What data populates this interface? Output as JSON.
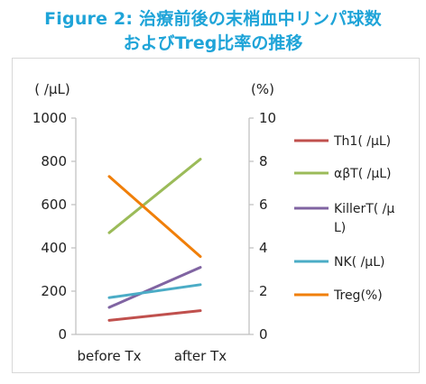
{
  "title": {
    "line1": "Figure 2: 治療前後の末梢血中リンパ球数",
    "line2": "およびTreg比率の推移",
    "color": "#1fa4d8"
  },
  "chart_data": {
    "type": "line",
    "categories": [
      "before Tx",
      "after Tx"
    ],
    "left_axis": {
      "unit": "( /μL)",
      "ylim": [
        0,
        1000
      ],
      "ticks": [
        "0",
        "200",
        "400",
        "600",
        "800",
        "1000"
      ]
    },
    "right_axis": {
      "unit": "(%)",
      "ylim": [
        0,
        10
      ],
      "ticks": [
        "0",
        "2",
        "4",
        "6",
        "8",
        "10"
      ]
    },
    "grid": false,
    "legend_position": "right",
    "series": [
      {
        "name": "Th1( /μL)",
        "axis": "left",
        "values": [
          65,
          110
        ],
        "color": "#c0504d"
      },
      {
        "name": "αβT( /μL)",
        "axis": "left",
        "values": [
          470,
          810
        ],
        "color": "#9bbb59"
      },
      {
        "name": "KillerT( /μL)",
        "axis": "left",
        "values": [
          125,
          310
        ],
        "color": "#8064a2"
      },
      {
        "name": "NK( /μL)",
        "axis": "left",
        "values": [
          170,
          230
        ],
        "color": "#4bacc6"
      },
      {
        "name": "Treg(%)",
        "axis": "right",
        "values": [
          7.3,
          3.6
        ],
        "color": "#f07f09"
      }
    ]
  }
}
